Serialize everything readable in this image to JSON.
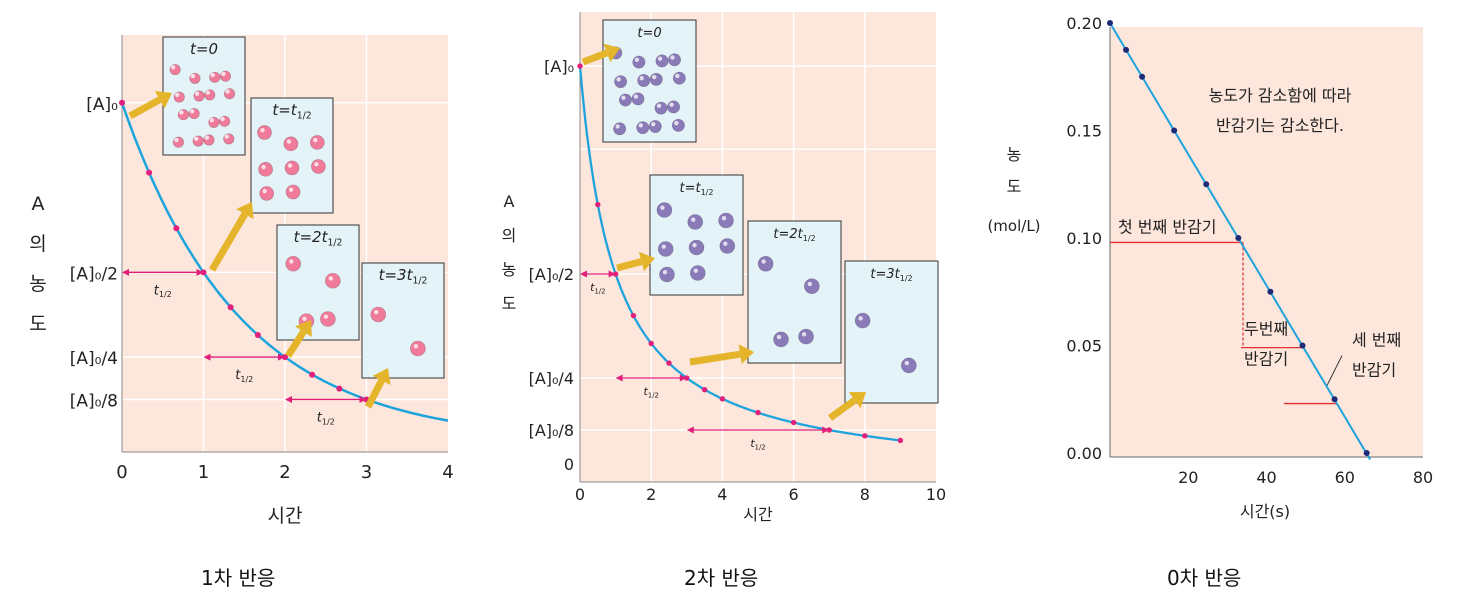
{
  "colors": {
    "plot_bg": "#fde6dc",
    "grid": "#ffffff",
    "curve": "#1ea4dc",
    "marker_pink": "#e0207a",
    "marker_navy": "#1e2a78",
    "arrow_gold": "#e4b52a",
    "box_bg": "#e4f3f8",
    "halflife_red": "#e03030",
    "sphere_pink": "#f07a9a",
    "sphere_purple": "#8a7ab8"
  },
  "captions": [
    "1차 반응",
    "2차 반응",
    "0차 반응"
  ],
  "chart_data": [
    {
      "type": "line",
      "title": "1차 반응",
      "xlabel": "시간",
      "ylabel": [
        "A",
        "의",
        "농",
        "도"
      ],
      "x_ticks": [
        "0",
        "1",
        "2",
        "3",
        "4"
      ],
      "y_tick_labels": [
        {
          "label": "[A]₀",
          "value": 1
        },
        {
          "label": "[A]₀/2",
          "value": 0.5
        },
        {
          "label": "[A]₀/4",
          "value": 0.25
        },
        {
          "label": "[A]₀/8",
          "value": 0.125
        }
      ],
      "xlim": [
        0,
        4
      ],
      "ylim": [
        -0.03,
        1.2
      ],
      "series": [
        {
          "x": [
            0,
            0.333,
            0.667,
            1,
            1.333,
            1.667,
            2,
            2.333,
            2.667,
            3
          ],
          "y": [
            1,
            0.794,
            0.63,
            0.5,
            0.397,
            0.315,
            0.25,
            0.198,
            0.157,
            0.125
          ]
        }
      ],
      "half_life_label": "t1/2",
      "half_life_intervals": [
        [
          0,
          1,
          0.5
        ],
        [
          1,
          2,
          0.25
        ],
        [
          2,
          3,
          0.125
        ]
      ],
      "snapshots": [
        {
          "label": "t=0",
          "count": 16
        },
        {
          "label": "t=t1/2",
          "count": 8
        },
        {
          "label": "t=2t1/2",
          "count": 4
        },
        {
          "label": "t=3t1/2",
          "count": 2
        }
      ]
    },
    {
      "type": "line",
      "title": "2차 반응",
      "xlabel": "시간",
      "ylabel": [
        "A",
        "의",
        "농",
        "도"
      ],
      "x_ticks": [
        "0",
        "2",
        "4",
        "6",
        "8",
        "10"
      ],
      "y_tick_labels": [
        {
          "label": "[A]₀",
          "value": 1
        },
        {
          "label": "[A]₀/2",
          "value": 0.5
        },
        {
          "label": "[A]₀/4",
          "value": 0.25
        },
        {
          "label": "[A]₀/8",
          "value": 0.125
        },
        {
          "label": "0",
          "value": 0
        }
      ],
      "xlim": [
        0,
        10
      ],
      "ylim": [
        0,
        1.13
      ],
      "series": [
        {
          "x": [
            0,
            0.5,
            1,
            1.5,
            2,
            2.5,
            3,
            3.5,
            4,
            5,
            6,
            7,
            8,
            9
          ],
          "y": [
            1,
            0.667,
            0.5,
            0.4,
            0.333,
            0.286,
            0.25,
            0.222,
            0.2,
            0.167,
            0.143,
            0.125,
            0.111,
            0.1
          ]
        }
      ],
      "half_life_label": "t1/2",
      "half_life_intervals": [
        [
          0,
          1,
          0.5
        ],
        [
          1,
          3,
          0.25
        ],
        [
          3,
          7,
          0.125
        ]
      ],
      "snapshots": [
        {
          "label": "t=0",
          "count": 16
        },
        {
          "label": "t=t1/2",
          "count": 8
        },
        {
          "label": "t=2t1/2",
          "count": 4
        },
        {
          "label": "t=3t1/2",
          "count": 2
        }
      ]
    },
    {
      "type": "line",
      "title": "0차 반응",
      "xlabel": "시간(s)",
      "ylabel": [
        "농",
        "도",
        "(mol/L)"
      ],
      "x_ticks": [
        20,
        40,
        60,
        80
      ],
      "y_ticks": [
        "0.00",
        "0.05",
        "0.10",
        "0.15",
        "0.20"
      ],
      "xlim": [
        0,
        80
      ],
      "ylim": [
        0,
        0.2
      ],
      "series": [
        {
          "x": [
            0,
            4.1,
            8.2,
            16.4,
            24.6,
            32.8,
            41,
            49.2,
            57.4,
            65.6
          ],
          "y": [
            0.2,
            0.1875,
            0.175,
            0.15,
            0.125,
            0.1,
            0.075,
            0.05,
            0.025,
            0.0
          ]
        }
      ],
      "line_end": [
        66.5,
        -0.003
      ],
      "annotation": [
        "농도가 감소함에 따라",
        "반감기는 감소한다."
      ],
      "half_lives": [
        {
          "label": [
            "첫 번째 반감기"
          ],
          "y": 0.097,
          "x_end": 34
        },
        {
          "label": [
            "두번째",
            "반감기"
          ],
          "y": 0.049,
          "x_end": 49
        },
        {
          "label": [
            "세 번째",
            "반감기"
          ],
          "y": 0.023,
          "x_end": 58
        }
      ]
    }
  ]
}
